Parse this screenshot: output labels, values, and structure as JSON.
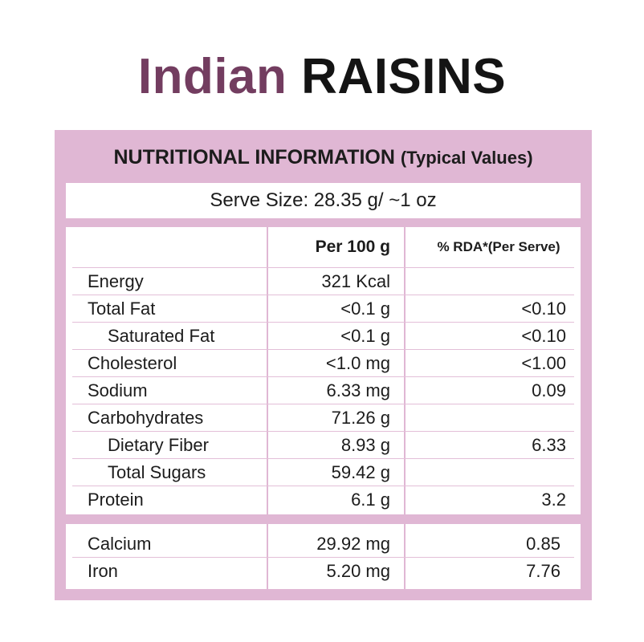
{
  "title": {
    "brand": "Indian",
    "product": "RAISINS"
  },
  "panel": {
    "heading": "NUTRITIONAL INFORMATION",
    "heading_sub": "(Typical Values)",
    "serve_size": "Serve Size: 28.35 g/ ~1 oz",
    "col_per100": "Per 100 g",
    "col_rda": "% RDA*(Per Serve)"
  },
  "colors": {
    "brand": "#733d60",
    "panel": "#e0b7d4",
    "text": "#1c1c1c"
  },
  "rows": [
    {
      "name": "Energy",
      "per100": "321 Kcal",
      "rda": ""
    },
    {
      "name": "Total Fat",
      "per100": "<0.1 g",
      "rda": "<0.10"
    },
    {
      "name": "Saturated Fat",
      "per100": "<0.1 g",
      "rda": "<0.10"
    },
    {
      "name": "Cholesterol",
      "per100": "<1.0 mg",
      "rda": "<1.00"
    },
    {
      "name": "Sodium",
      "per100": "6.33 mg",
      "rda": "0.09"
    },
    {
      "name": "Carbohydrates",
      "per100": "71.26 g",
      "rda": ""
    },
    {
      "name": "Dietary Fiber",
      "per100": "8.93 g",
      "rda": "6.33"
    },
    {
      "name": "Total Sugars",
      "per100": "59.42 g",
      "rda": ""
    },
    {
      "name": "Protein",
      "per100": "6.1 g",
      "rda": "3.2"
    },
    {
      "name": "Calcium",
      "per100": "29.92 mg",
      "rda": "0.85"
    },
    {
      "name": "Iron",
      "per100": "5.20 mg",
      "rda": "7.76"
    }
  ]
}
